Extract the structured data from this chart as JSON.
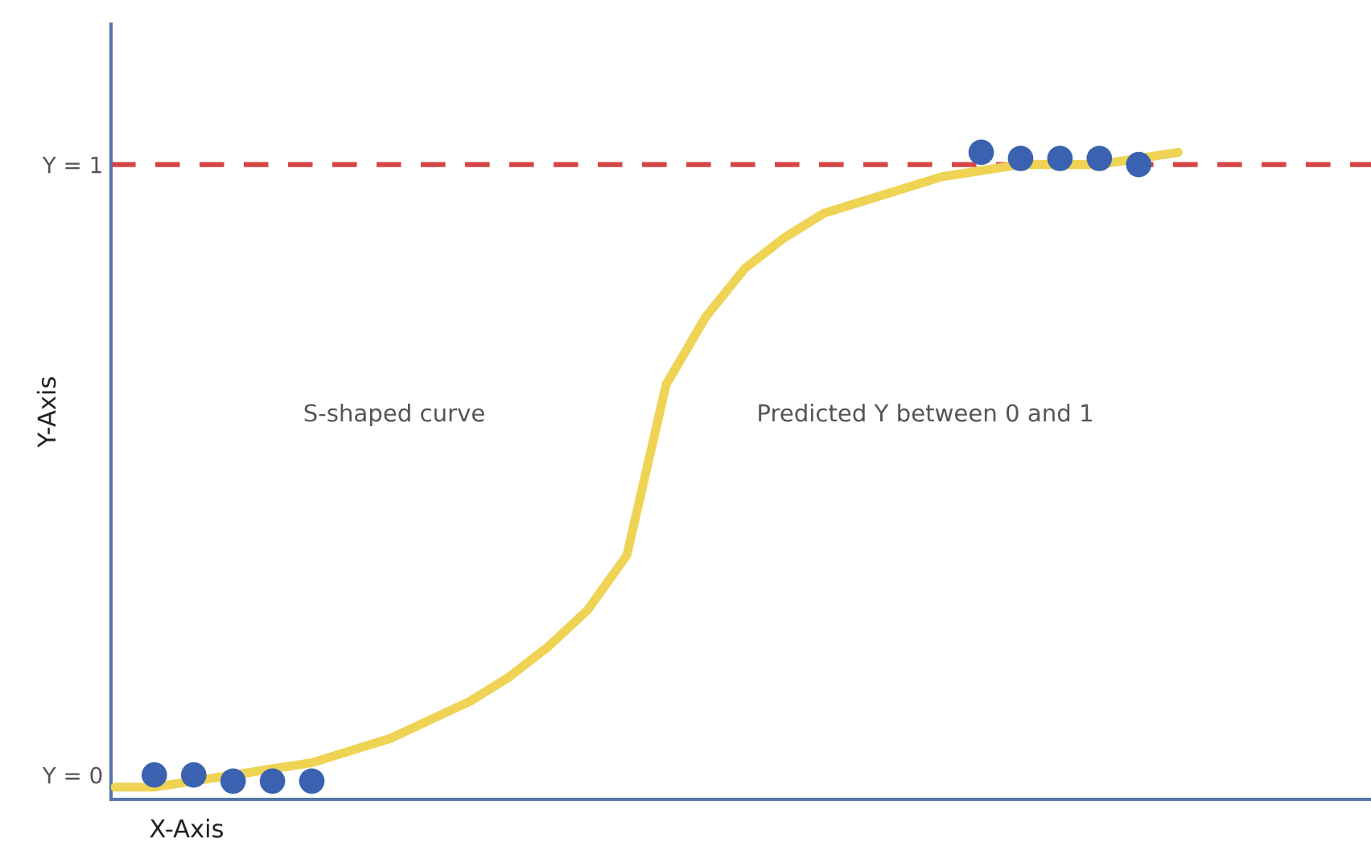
{
  "chart_data": {
    "type": "line",
    "xlabel": "X-Axis",
    "ylabel": "Y-Axis",
    "categories": [
      null,
      null,
      null,
      null,
      null,
      null,
      null,
      null,
      null,
      null,
      null,
      null,
      null,
      null,
      null,
      null,
      null,
      null,
      null,
      null,
      null,
      null,
      null,
      null,
      null,
      null,
      null,
      null
    ],
    "series": [
      {
        "color": "#efd354",
        "marker": "none",
        "values": [
          -0.02,
          -0.02,
          -0.01,
          0.0,
          0.01,
          0.02,
          0.04,
          0.06,
          0.09,
          0.12,
          0.16,
          0.21,
          0.27,
          0.36,
          0.64,
          0.75,
          0.83,
          0.88,
          0.92,
          0.94,
          0.96,
          0.98,
          0.99,
          1.0,
          1.0,
          1.0,
          1.01,
          1.02
        ]
      },
      {
        "type": "scatter",
        "color": "#3a62b0",
        "marker": "circle",
        "values": [
          null,
          0.0,
          0.0,
          -0.01,
          -0.01,
          -0.01,
          null,
          null,
          null,
          null,
          null,
          null,
          null,
          null,
          null,
          null,
          null,
          null,
          null,
          null,
          null,
          null,
          1.02,
          1.01,
          1.01,
          1.01,
          1.0,
          null
        ]
      }
    ],
    "ylim": [
      -0.04,
      1.23
    ],
    "yticks": [
      {
        "value": 0,
        "label": "Y = 0"
      },
      {
        "value": 1,
        "label": "Y = 1"
      }
    ],
    "tick_labels": "y",
    "ref_lines": [
      {
        "axis": "y",
        "value": 1,
        "color": "#d64545",
        "line_style": "dashed"
      }
    ],
    "annotations": [
      "S-shaped curve",
      "Predicted Y between 0 and 1"
    ],
    "grid": false,
    "legend": false
  }
}
